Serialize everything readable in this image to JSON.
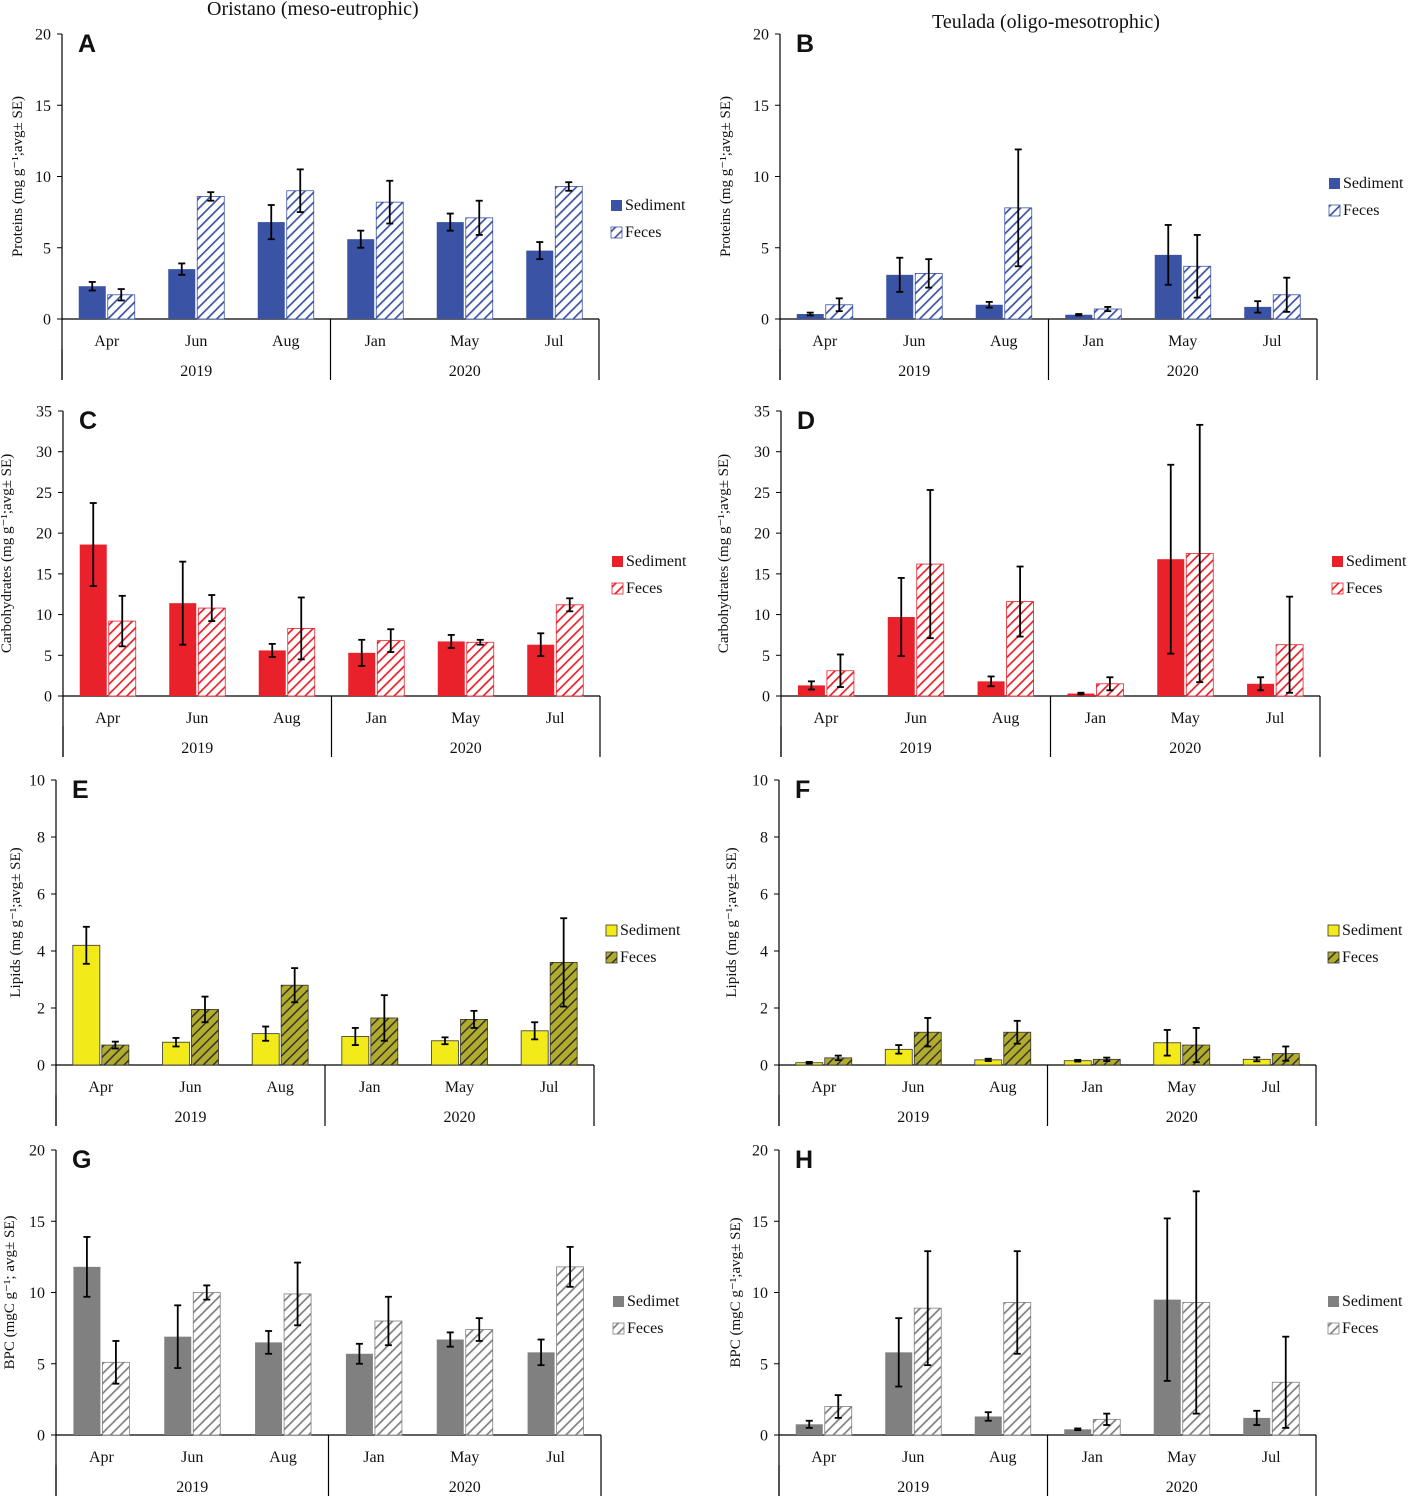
{
  "titles": {
    "oristano": "Oristano (meso-eutrophic)",
    "teulada": "Teulada (oligo-mesotrophic)"
  },
  "chart_data": [
    {
      "panel": "A",
      "type": "bar",
      "site": "Oristano",
      "ylabel": "Proteins (mg g⁻¹;avg± SE)",
      "ylim": [
        0,
        20
      ],
      "yticks": [
        0,
        5,
        10,
        15,
        20
      ],
      "categories": [
        "Apr",
        "Jun",
        "Aug",
        "Jan",
        "May",
        "Jul"
      ],
      "groups": [
        {
          "label": "2019",
          "categories": [
            "Apr",
            "Jun",
            "Aug"
          ]
        },
        {
          "label": "2020",
          "categories": [
            "Jan",
            "May",
            "Jul"
          ]
        }
      ],
      "color": "#3a53a4",
      "pattern_style": "diag",
      "series": [
        {
          "name": "Sediment",
          "values": [
            2.3,
            3.5,
            6.8,
            5.6,
            6.8,
            4.8
          ],
          "errors": [
            0.3,
            0.4,
            1.2,
            0.6,
            0.6,
            0.6
          ]
        },
        {
          "name": "Feces",
          "values": [
            1.7,
            8.6,
            9.0,
            8.2,
            7.1,
            9.3
          ],
          "errors": [
            0.4,
            0.3,
            1.5,
            1.5,
            1.2,
            0.3
          ]
        }
      ]
    },
    {
      "panel": "B",
      "type": "bar",
      "site": "Teulada",
      "ylabel": "Proteins (mg g⁻¹;avg± SE)",
      "ylim": [
        0,
        20
      ],
      "yticks": [
        0,
        5,
        10,
        15,
        20
      ],
      "categories": [
        "Apr",
        "Jun",
        "Aug",
        "Jan",
        "May",
        "Jul"
      ],
      "groups": [
        {
          "label": "2019",
          "categories": [
            "Apr",
            "Jun",
            "Aug"
          ]
        },
        {
          "label": "2020",
          "categories": [
            "Jan",
            "May",
            "Jul"
          ]
        }
      ],
      "color": "#3a53a4",
      "pattern_style": "diag",
      "series": [
        {
          "name": "Sediment",
          "values": [
            0.35,
            3.1,
            1.0,
            0.3,
            4.5,
            0.85
          ],
          "errors": [
            0.1,
            1.2,
            0.2,
            0.05,
            2.1,
            0.4
          ]
        },
        {
          "name": "Feces",
          "values": [
            1.0,
            3.2,
            7.8,
            0.7,
            3.7,
            1.7
          ],
          "errors": [
            0.45,
            1.0,
            4.1,
            0.15,
            2.2,
            1.2
          ]
        }
      ]
    },
    {
      "panel": "C",
      "type": "bar",
      "site": "Oristano",
      "ylabel": "Carbohydrates (mg g⁻¹;avg± SE)",
      "ylim": [
        0,
        35
      ],
      "yticks": [
        0,
        5,
        10,
        15,
        20,
        25,
        30,
        35
      ],
      "categories": [
        "Apr",
        "Jun",
        "Aug",
        "Jan",
        "May",
        "Jul"
      ],
      "groups": [
        {
          "label": "2019",
          "categories": [
            "Apr",
            "Jun",
            "Aug"
          ]
        },
        {
          "label": "2020",
          "categories": [
            "Jan",
            "May",
            "Jul"
          ]
        }
      ],
      "color": "#e8212b",
      "pattern_style": "diag",
      "series": [
        {
          "name": "Sediment",
          "values": [
            18.6,
            11.4,
            5.6,
            5.3,
            6.7,
            6.3
          ],
          "errors": [
            5.1,
            5.1,
            0.8,
            1.6,
            0.8,
            1.4
          ]
        },
        {
          "name": "Feces",
          "values": [
            9.2,
            10.8,
            8.3,
            6.8,
            6.6,
            11.2
          ],
          "errors": [
            3.1,
            1.6,
            3.8,
            1.4,
            0.3,
            0.8
          ]
        }
      ]
    },
    {
      "panel": "D",
      "type": "bar",
      "site": "Teulada",
      "ylabel": "Carbohydrates (mg g⁻¹;avg± SE)",
      "ylim": [
        0,
        35
      ],
      "yticks": [
        0,
        5,
        10,
        15,
        20,
        25,
        30,
        35
      ],
      "categories": [
        "Apr",
        "Jun",
        "Aug",
        "Jan",
        "May",
        "Jul"
      ],
      "groups": [
        {
          "label": "2019",
          "categories": [
            "Apr",
            "Jun",
            "Aug"
          ]
        },
        {
          "label": "2020",
          "categories": [
            "Jan",
            "May",
            "Jul"
          ]
        }
      ],
      "color": "#e8212b",
      "pattern_style": "diag",
      "series": [
        {
          "name": "Sediment",
          "values": [
            1.3,
            9.7,
            1.8,
            0.3,
            16.8,
            1.5
          ],
          "errors": [
            0.5,
            4.8,
            0.6,
            0.1,
            11.6,
            0.8
          ]
        },
        {
          "name": "Feces",
          "values": [
            3.1,
            16.2,
            11.6,
            1.5,
            17.5,
            6.3
          ],
          "errors": [
            2.0,
            9.1,
            4.3,
            0.8,
            15.8,
            5.9
          ]
        }
      ]
    },
    {
      "panel": "E",
      "type": "bar",
      "site": "Oristano",
      "ylabel": "Lipids (mg g⁻¹;avg± SE)",
      "ylim": [
        0,
        10
      ],
      "yticks": [
        0,
        2,
        4,
        6,
        8,
        10
      ],
      "categories": [
        "Apr",
        "Jun",
        "Aug",
        "Jan",
        "May",
        "Jul"
      ],
      "groups": [
        {
          "label": "2019",
          "categories": [
            "Apr",
            "Jun",
            "Aug"
          ]
        },
        {
          "label": "2020",
          "categories": [
            "Jan",
            "May",
            "Jul"
          ]
        }
      ],
      "color": "#f2ea19",
      "feces_color": "#b2ac2c",
      "pattern_style": "olive",
      "series": [
        {
          "name": "Sediment",
          "values": [
            4.2,
            0.8,
            1.1,
            1.0,
            0.85,
            1.2
          ],
          "errors": [
            0.65,
            0.15,
            0.25,
            0.3,
            0.12,
            0.3
          ]
        },
        {
          "name": "Feces",
          "values": [
            0.7,
            1.95,
            2.8,
            1.65,
            1.6,
            3.6
          ],
          "errors": [
            0.12,
            0.45,
            0.6,
            0.8,
            0.3,
            1.55
          ]
        }
      ]
    },
    {
      "panel": "F",
      "type": "bar",
      "site": "Teulada",
      "ylabel": "Lipids (mg g⁻¹;avg± SE)",
      "ylim": [
        0,
        10
      ],
      "yticks": [
        0,
        2,
        4,
        6,
        8,
        10
      ],
      "categories": [
        "Apr",
        "Jun",
        "Aug",
        "Jan",
        "May",
        "Jul"
      ],
      "groups": [
        {
          "label": "2019",
          "categories": [
            "Apr",
            "Jun",
            "Aug"
          ]
        },
        {
          "label": "2020",
          "categories": [
            "Jan",
            "May",
            "Jul"
          ]
        }
      ],
      "color": "#f2ea19",
      "feces_color": "#b2ac2c",
      "pattern_style": "olive",
      "series": [
        {
          "name": "Sediment",
          "values": [
            0.08,
            0.55,
            0.18,
            0.15,
            0.78,
            0.2
          ],
          "errors": [
            0.03,
            0.15,
            0.04,
            0.03,
            0.45,
            0.07
          ]
        },
        {
          "name": "Feces",
          "values": [
            0.25,
            1.15,
            1.15,
            0.2,
            0.7,
            0.4
          ],
          "errors": [
            0.08,
            0.5,
            0.4,
            0.06,
            0.6,
            0.25
          ]
        }
      ]
    },
    {
      "panel": "G",
      "type": "bar",
      "site": "Oristano",
      "ylabel": "BPC (mgC g⁻¹; avg± SE)",
      "ylim": [
        0,
        20
      ],
      "yticks": [
        0,
        5,
        10,
        15,
        20
      ],
      "categories": [
        "Apr",
        "Jun",
        "Aug",
        "Jan",
        "May",
        "Jul"
      ],
      "groups": [
        {
          "label": "2019",
          "categories": [
            "Apr",
            "Jun",
            "Aug"
          ]
        },
        {
          "label": "2020",
          "categories": [
            "Jan",
            "May",
            "Jul"
          ]
        }
      ],
      "color": "#808080",
      "pattern_style": "diag",
      "series": [
        {
          "name": "Sedimet",
          "values": [
            11.8,
            6.9,
            6.5,
            5.7,
            6.7,
            5.8
          ],
          "errors": [
            2.1,
            2.2,
            0.8,
            0.7,
            0.5,
            0.9
          ]
        },
        {
          "name": "Feces",
          "values": [
            5.1,
            10.0,
            9.9,
            8.0,
            7.4,
            11.8
          ],
          "errors": [
            1.5,
            0.5,
            2.2,
            1.7,
            0.8,
            1.4
          ]
        }
      ]
    },
    {
      "panel": "H",
      "type": "bar",
      "site": "Teulada",
      "ylabel": "BPC (mgC g⁻¹;avg± SE)",
      "ylim": [
        0,
        20
      ],
      "yticks": [
        0,
        5,
        10,
        15,
        20
      ],
      "categories": [
        "Apr",
        "Jun",
        "Aug",
        "Jan",
        "May",
        "Jul"
      ],
      "groups": [
        {
          "label": "2019",
          "categories": [
            "Apr",
            "Jun",
            "Aug"
          ]
        },
        {
          "label": "2020",
          "categories": [
            "Jan",
            "May",
            "Jul"
          ]
        }
      ],
      "color": "#808080",
      "pattern_style": "diag",
      "series": [
        {
          "name": "Sediment",
          "values": [
            0.75,
            5.8,
            1.3,
            0.4,
            9.5,
            1.2
          ],
          "errors": [
            0.25,
            2.4,
            0.3,
            0.06,
            5.7,
            0.5
          ]
        },
        {
          "name": "Feces",
          "values": [
            2.0,
            8.9,
            9.3,
            1.1,
            9.3,
            3.7
          ],
          "errors": [
            0.8,
            4.0,
            3.6,
            0.4,
            7.8,
            3.2
          ]
        }
      ]
    }
  ]
}
